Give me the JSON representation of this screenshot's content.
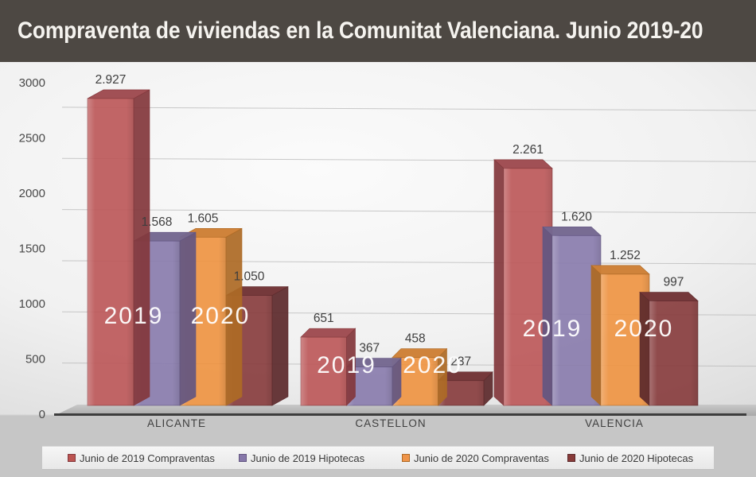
{
  "header": {
    "title": "Compraventa de viviendas en la Comunitat Valenciana. Junio 2019-20"
  },
  "chart_data": {
    "type": "bar",
    "projection": "3d-column",
    "title": "Compraventa de viviendas en la Comunitat Valenciana. Junio 2019-20",
    "categories": [
      "ALICANTE",
      "CASTELLON",
      "VALENCIA"
    ],
    "series": [
      {
        "name": "Junio de 2019 Compraventas",
        "values": [
          2927,
          651,
          2261
        ],
        "value_labels": [
          "2.927",
          "651",
          "2.261"
        ],
        "colors": {
          "front": "#bb5556",
          "side": "#83383c",
          "top": "#9e4a4f",
          "legend": "#bc5451"
        }
      },
      {
        "name": "Junio de 2019 Hipotecas",
        "values": [
          1568,
          367,
          1620
        ],
        "value_labels": [
          "1.568",
          "367",
          "1.620"
        ],
        "colors": {
          "front": "#877aac",
          "side": "#635681",
          "top": "#746790",
          "legend": "#8677a9"
        }
      },
      {
        "name": "Junio de 2020 Compraventas",
        "values": [
          1605,
          458,
          1252
        ],
        "value_labels": [
          "1.605",
          "458",
          "1.252"
        ],
        "colors": {
          "front": "#ee923f",
          "side": "#ad6a26",
          "top": "#cd7f35",
          "legend": "#ef9449"
        }
      },
      {
        "name": "Junio de 2020 Hipotecas",
        "values": [
          1050,
          237,
          997
        ],
        "value_labels": [
          "1.050",
          "237",
          "997"
        ],
        "colors": {
          "front": "#863a3b",
          "side": "#5c2a2c",
          "top": "#713335",
          "legend": "#883b39"
        }
      }
    ],
    "year_overlays": [
      "2019",
      "2020"
    ],
    "y_ticks": [
      0,
      500,
      1000,
      1500,
      2000,
      2500,
      3000
    ],
    "ylim": [
      0,
      3000
    ],
    "grid": true,
    "legend_position": "bottom",
    "text_colors": {
      "value_label": "#3e3e3e",
      "tick_label": "#484848",
      "category_label": "#3f3f3f",
      "year_overlay": "#ffffff"
    }
  }
}
